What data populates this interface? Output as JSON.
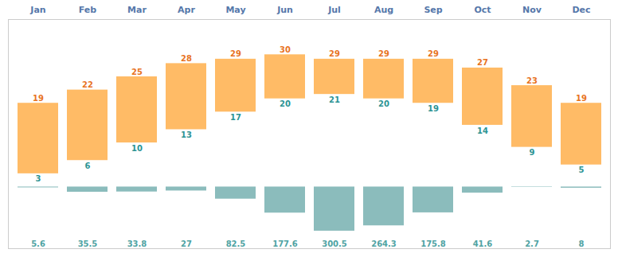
{
  "chart_data": {
    "type": "bar",
    "categories": [
      "Jan",
      "Feb",
      "Mar",
      "Apr",
      "May",
      "Jun",
      "Jul",
      "Aug",
      "Sep",
      "Oct",
      "Nov",
      "Dec"
    ],
    "series": [
      {
        "type": "floating_bar",
        "color": "#FFBB66",
        "values": [
          19,
          22,
          25,
          28,
          29,
          30,
          29,
          29,
          29,
          27,
          23,
          19
        ],
        "min": [
          3,
          6,
          10,
          13,
          17,
          20,
          21,
          20,
          19,
          14,
          9,
          5
        ],
        "data_labels": true
      },
      {
        "type": "bar",
        "axis": "y2",
        "color": "#8BBCBC",
        "values": [
          5.6,
          35.5,
          33.8,
          27,
          82.5,
          177.6,
          300.5,
          264.3,
          175.8,
          41.6,
          2.7,
          8
        ],
        "data_labels": true
      }
    ],
    "ylim": [
      -14,
      38
    ],
    "y2lim": [
      420,
      -1140
    ],
    "grid": false,
    "tick_labels": "x"
  }
}
